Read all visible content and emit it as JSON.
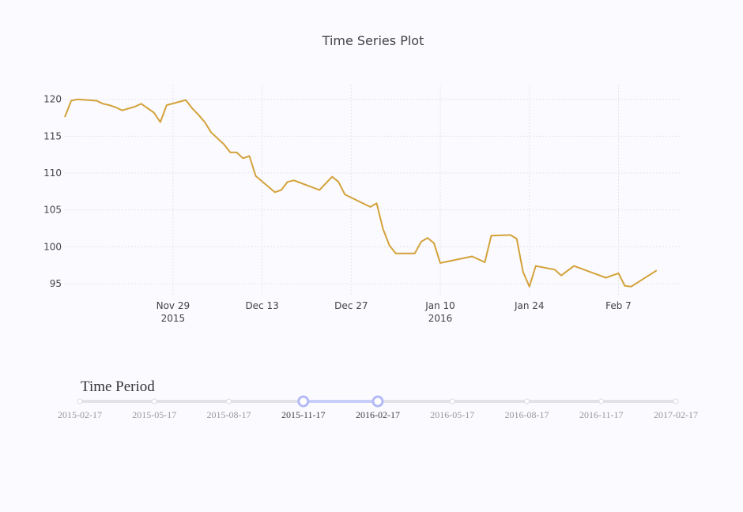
{
  "chart_data": {
    "type": "line",
    "title": "Time Series Plot",
    "xlabel": "",
    "ylabel": "",
    "ylim": [
      93.5,
      122
    ],
    "xlim": [
      "2015-11-12",
      "2016-02-17"
    ],
    "y_ticks": [
      95,
      100,
      105,
      110,
      115,
      120
    ],
    "x_ticks": [
      {
        "date": "2015-11-29",
        "label": "Nov 29",
        "sub": "2015"
      },
      {
        "date": "2015-12-13",
        "label": "Dec 13",
        "sub": ""
      },
      {
        "date": "2015-12-27",
        "label": "Dec 27",
        "sub": ""
      },
      {
        "date": "2016-01-10",
        "label": "Jan 10",
        "sub": "2016"
      },
      {
        "date": "2016-01-24",
        "label": "Jan 24",
        "sub": ""
      },
      {
        "date": "2016-02-07",
        "label": "Feb 7",
        "sub": ""
      }
    ],
    "grid": true,
    "line_color": "#d4a23a",
    "series": [
      {
        "points": [
          [
            "2015-11-12",
            117.6
          ],
          [
            "2015-11-13",
            119.8
          ],
          [
            "2015-11-14",
            120.0
          ],
          [
            "2015-11-17",
            119.8
          ],
          [
            "2015-11-18",
            119.4
          ],
          [
            "2015-11-19",
            119.2
          ],
          [
            "2015-11-20",
            118.9
          ],
          [
            "2015-11-21",
            118.5
          ],
          [
            "2015-11-23",
            119.0
          ],
          [
            "2015-11-24",
            119.4
          ],
          [
            "2015-11-26",
            118.2
          ],
          [
            "2015-11-27",
            116.9
          ],
          [
            "2015-11-28",
            119.2
          ],
          [
            "2015-12-01",
            119.9
          ],
          [
            "2015-12-02",
            118.8
          ],
          [
            "2015-12-03",
            117.9
          ],
          [
            "2015-12-04",
            116.9
          ],
          [
            "2015-12-05",
            115.5
          ],
          [
            "2015-12-07",
            113.9
          ],
          [
            "2015-12-08",
            112.8
          ],
          [
            "2015-12-09",
            112.8
          ],
          [
            "2015-12-10",
            112.0
          ],
          [
            "2015-12-11",
            112.3
          ],
          [
            "2015-12-12",
            109.6
          ],
          [
            "2015-12-15",
            107.4
          ],
          [
            "2015-12-16",
            107.7
          ],
          [
            "2015-12-17",
            108.8
          ],
          [
            "2015-12-18",
            109.0
          ],
          [
            "2015-12-22",
            107.7
          ],
          [
            "2015-12-24",
            109.5
          ],
          [
            "2015-12-25",
            108.8
          ],
          [
            "2015-12-26",
            107.1
          ],
          [
            "2015-12-30",
            105.4
          ],
          [
            "2015-12-31",
            105.9
          ],
          [
            "2016-01-01",
            102.4
          ],
          [
            "2016-01-02",
            100.2
          ],
          [
            "2016-01-03",
            99.1
          ],
          [
            "2016-01-06",
            99.1
          ],
          [
            "2016-01-07",
            100.7
          ],
          [
            "2016-01-08",
            101.2
          ],
          [
            "2016-01-09",
            100.5
          ],
          [
            "2016-01-10",
            97.8
          ],
          [
            "2016-01-15",
            98.7
          ],
          [
            "2016-01-17",
            97.9
          ],
          [
            "2016-01-18",
            101.5
          ],
          [
            "2016-01-21",
            101.6
          ],
          [
            "2016-01-22",
            101.1
          ],
          [
            "2016-01-23",
            96.6
          ],
          [
            "2016-01-24",
            94.6
          ],
          [
            "2016-01-25",
            97.4
          ],
          [
            "2016-01-28",
            96.9
          ],
          [
            "2016-01-29",
            96.1
          ],
          [
            "2016-01-31",
            97.4
          ],
          [
            "2016-02-05",
            95.8
          ],
          [
            "2016-02-06",
            96.1
          ],
          [
            "2016-02-07",
            96.4
          ],
          [
            "2016-02-08",
            94.7
          ],
          [
            "2016-02-09",
            94.6
          ],
          [
            "2016-02-13",
            96.8
          ]
        ]
      }
    ]
  },
  "slider": {
    "title": "Time Period",
    "labels": [
      "2015-02-17",
      "2015-05-17",
      "2015-08-17",
      "2015-11-17",
      "2016-02-17",
      "2016-05-17",
      "2016-08-17",
      "2016-11-17",
      "2017-02-17"
    ],
    "range_start": "2015-11-17",
    "range_end": "2016-02-17",
    "handle_color": "#b4baf5"
  }
}
